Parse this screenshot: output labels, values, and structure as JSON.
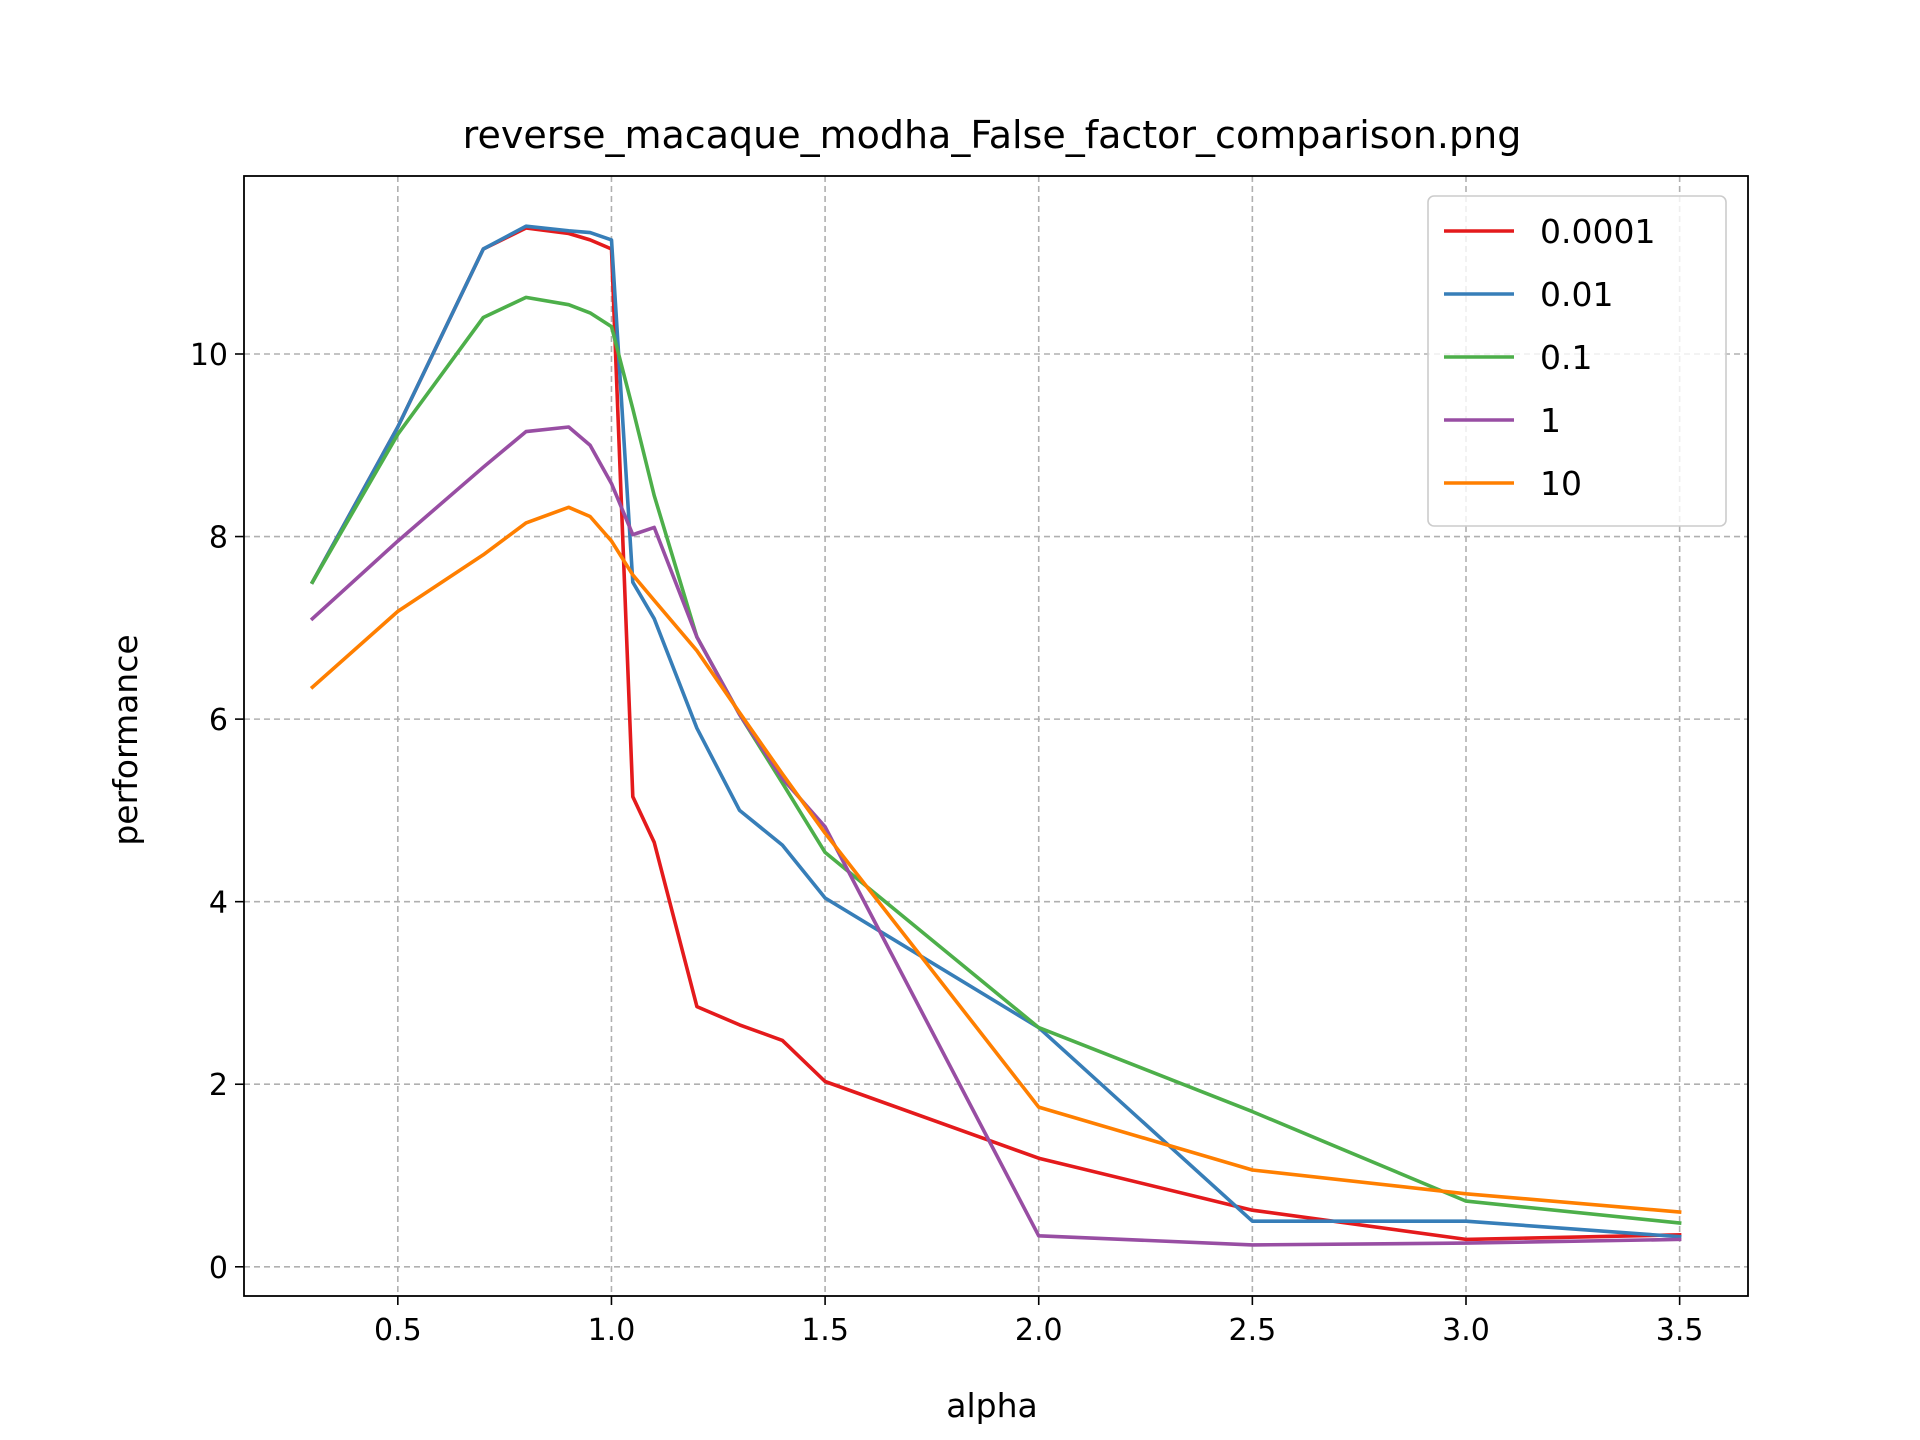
{
  "chart_data": {
    "type": "line",
    "title": "reverse_macaque_modha_False_factor_comparison.png",
    "xlabel": "alpha",
    "ylabel": "performance",
    "xlim": [
      0.14,
      3.66
    ],
    "ylim": [
      -0.32,
      11.95
    ],
    "xticks": [
      0.5,
      1.0,
      1.5,
      2.0,
      2.5,
      3.0,
      3.5
    ],
    "xtick_labels": [
      "0.5",
      "1.0",
      "1.5",
      "2.0",
      "2.5",
      "3.0",
      "3.5"
    ],
    "yticks": [
      0,
      2,
      4,
      6,
      8,
      10
    ],
    "ytick_labels": [
      "0",
      "2",
      "4",
      "6",
      "8",
      "10"
    ],
    "grid": true,
    "legend_position": "top-right",
    "series": [
      {
        "name": "0.0001",
        "color": "#e41a1c",
        "x": [
          0.3,
          0.5,
          0.7,
          0.8,
          0.9,
          0.95,
          1.0,
          1.05,
          1.1,
          1.2,
          1.3,
          1.4,
          1.5,
          2.0,
          2.5,
          3.0,
          3.5
        ],
        "y": [
          7.5,
          9.2,
          11.15,
          11.38,
          11.32,
          11.25,
          11.15,
          5.15,
          4.65,
          2.85,
          2.65,
          2.48,
          2.03,
          1.19,
          0.62,
          0.3,
          0.35
        ]
      },
      {
        "name": "0.01",
        "color": "#377eb8",
        "x": [
          0.3,
          0.5,
          0.7,
          0.8,
          0.9,
          0.95,
          1.0,
          1.05,
          1.1,
          1.2,
          1.3,
          1.4,
          1.5,
          2.0,
          2.5,
          3.0,
          3.5
        ],
        "y": [
          7.5,
          9.2,
          11.15,
          11.4,
          11.35,
          11.33,
          11.25,
          7.5,
          7.1,
          5.9,
          5.0,
          4.62,
          4.04,
          2.62,
          0.5,
          0.5,
          0.33
        ]
      },
      {
        "name": "0.1",
        "color": "#4daf4a",
        "x": [
          0.3,
          0.5,
          0.7,
          0.8,
          0.9,
          0.95,
          1.0,
          1.05,
          1.1,
          1.2,
          1.3,
          1.4,
          1.5,
          2.0,
          2.5,
          3.0,
          3.5
        ],
        "y": [
          7.5,
          9.12,
          10.4,
          10.62,
          10.54,
          10.45,
          10.3,
          9.4,
          8.45,
          6.9,
          6.05,
          5.3,
          4.54,
          2.62,
          1.7,
          0.72,
          0.48
        ]
      },
      {
        "name": "1",
        "color": "#984ea3",
        "x": [
          0.3,
          0.5,
          0.7,
          0.8,
          0.9,
          0.95,
          1.0,
          1.05,
          1.1,
          1.2,
          1.3,
          1.4,
          1.5,
          2.0,
          2.5,
          3.0,
          3.5
        ],
        "y": [
          7.1,
          7.95,
          8.76,
          9.15,
          9.2,
          9.0,
          8.58,
          8.02,
          8.1,
          6.9,
          6.05,
          5.35,
          4.82,
          0.34,
          0.24,
          0.26,
          0.3
        ]
      },
      {
        "name": "10",
        "color": "#ff7f00",
        "x": [
          0.3,
          0.5,
          0.7,
          0.8,
          0.9,
          0.95,
          1.0,
          1.05,
          1.1,
          1.2,
          1.3,
          1.4,
          1.5,
          2.0,
          2.5,
          3.0,
          3.5
        ],
        "y": [
          6.35,
          7.18,
          7.8,
          8.15,
          8.32,
          8.22,
          7.95,
          7.58,
          7.3,
          6.75,
          6.07,
          5.4,
          4.75,
          1.75,
          1.06,
          0.8,
          0.6
        ]
      }
    ]
  }
}
